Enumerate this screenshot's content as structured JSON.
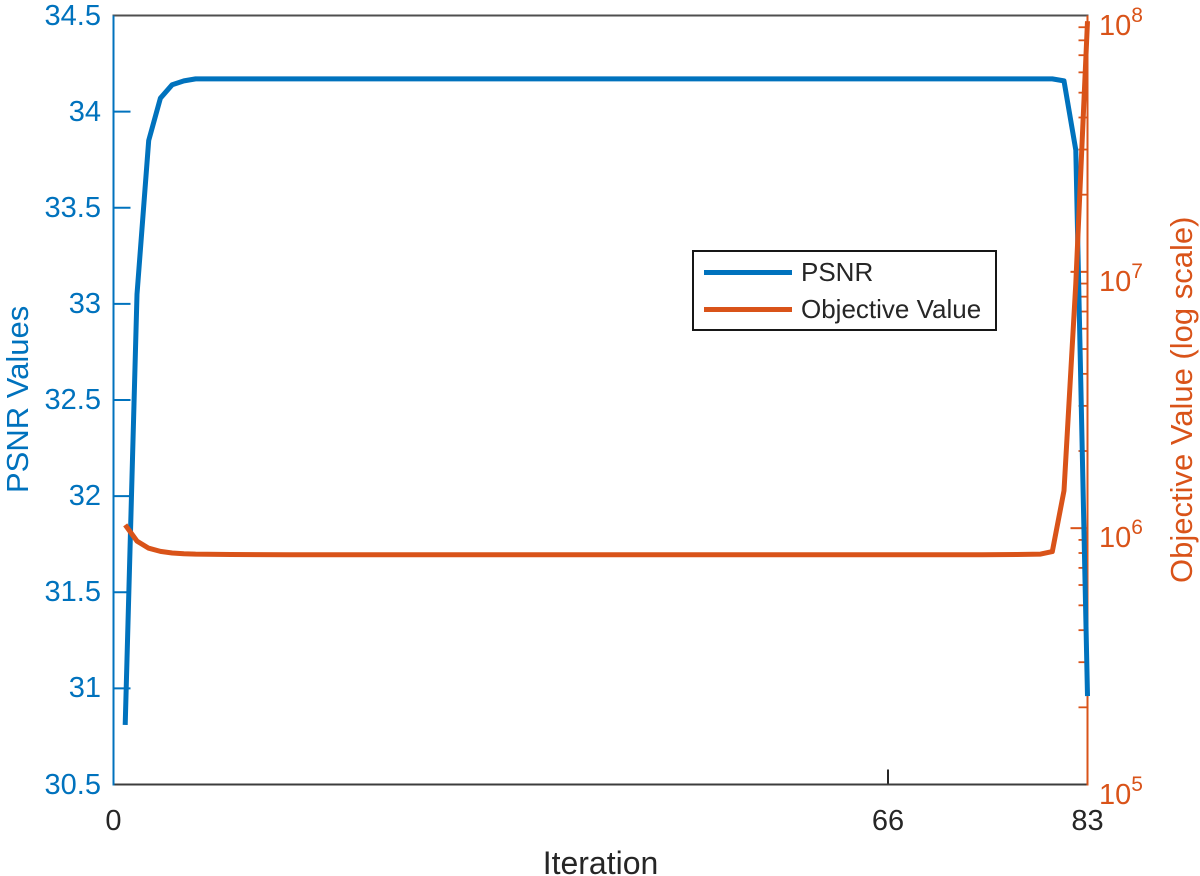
{
  "figure": {
    "background": "#ffffff"
  },
  "chart_data": {
    "type": "line",
    "title": "",
    "xlabel": "Iteration",
    "xlim": [
      0,
      83
    ],
    "x_ticks": [
      0,
      66,
      83
    ],
    "x_axis_color": "#262626",
    "grid": "off",
    "left_axis": {
      "label": "PSNR Values",
      "color": "#0072BD",
      "scale": "linear",
      "lim": [
        30.5,
        34.5
      ],
      "ticks": [
        30.5,
        31,
        31.5,
        32,
        32.5,
        33,
        33.5,
        34,
        34.5
      ]
    },
    "right_axis": {
      "label": "Objective Value (log scale)",
      "color": "#D95319",
      "scale": "log",
      "lim_exponents": [
        5,
        8
      ],
      "tick_exponents": [
        5,
        6,
        7,
        8
      ]
    },
    "legend": {
      "position": "inside-upper-center",
      "entries": [
        "PSNR",
        "Objective Value"
      ]
    },
    "series": [
      {
        "name": "PSNR",
        "axis": "left",
        "color": "#0072BD",
        "line_width": 5,
        "points": [
          [
            1,
            30.81
          ],
          [
            2,
            33.05
          ],
          [
            3,
            33.85
          ],
          [
            4,
            34.07
          ],
          [
            5,
            34.14
          ],
          [
            6,
            34.16
          ],
          [
            7,
            34.17
          ],
          [
            10,
            34.17
          ],
          [
            15,
            34.17
          ],
          [
            20,
            34.17
          ],
          [
            25,
            34.17
          ],
          [
            30,
            34.17
          ],
          [
            35,
            34.17
          ],
          [
            40,
            34.17
          ],
          [
            45,
            34.17
          ],
          [
            50,
            34.17
          ],
          [
            55,
            34.17
          ],
          [
            60,
            34.17
          ],
          [
            65,
            34.17
          ],
          [
            70,
            34.17
          ],
          [
            74,
            34.17
          ],
          [
            77,
            34.17
          ],
          [
            79,
            34.17
          ],
          [
            80,
            34.17
          ],
          [
            81,
            34.16
          ],
          [
            82,
            33.8
          ],
          [
            83,
            30.96
          ]
        ]
      },
      {
        "name": "Objective Value",
        "axis": "right",
        "color": "#D95319",
        "line_width": 5,
        "points": [
          [
            1,
            1030000
          ],
          [
            2,
            890000
          ],
          [
            3,
            835000
          ],
          [
            4,
            812000
          ],
          [
            5,
            800000
          ],
          [
            6,
            795000
          ],
          [
            7,
            792000
          ],
          [
            10,
            789000
          ],
          [
            15,
            788000
          ],
          [
            20,
            787000
          ],
          [
            25,
            787000
          ],
          [
            30,
            787000
          ],
          [
            35,
            787000
          ],
          [
            40,
            787000
          ],
          [
            45,
            787000
          ],
          [
            50,
            787000
          ],
          [
            55,
            787000
          ],
          [
            60,
            787000
          ],
          [
            65,
            787000
          ],
          [
            70,
            787000
          ],
          [
            74,
            788000
          ],
          [
            77,
            789000
          ],
          [
            79,
            792000
          ],
          [
            80,
            810000
          ],
          [
            81,
            1400000
          ],
          [
            82,
            9000000
          ],
          [
            83,
            95000000
          ]
        ]
      }
    ]
  }
}
